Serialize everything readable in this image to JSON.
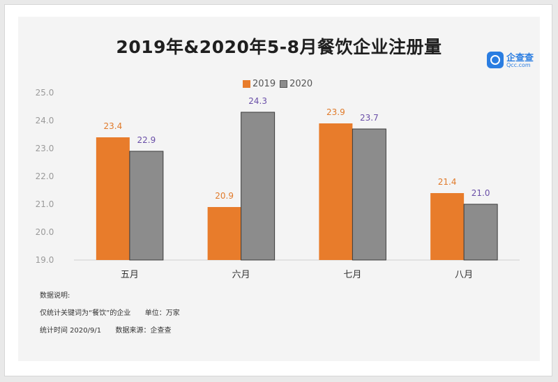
{
  "logo": {
    "name": "企查查",
    "sub": "Qcc.com",
    "color": "#2a7de1"
  },
  "notes": {
    "heading": "数据说明:",
    "scope": "仅统计关键词为“餐饮”的企业",
    "unit": "单位：万家",
    "stat_time": "统计时间 2020/9/1",
    "source": "数据来源：企查查"
  },
  "chart_data": {
    "type": "bar",
    "title": "2019年&2020年5-8月餐饮企业注册量",
    "categories": [
      "五月",
      "六月",
      "七月",
      "八月"
    ],
    "series": [
      {
        "name": "2019",
        "values": [
          23.4,
          20.9,
          23.9,
          21.4
        ],
        "color": "#e87c2b",
        "label_color": "#e07a2a"
      },
      {
        "name": "2020",
        "values": [
          22.9,
          24.3,
          23.7,
          21.0
        ],
        "color": "#8c8c8c",
        "label_color": "#6a4fa8"
      }
    ],
    "ylim": [
      19.0,
      25.0
    ],
    "yticks": [
      "19.0",
      "20.0",
      "21.0",
      "22.0",
      "23.0",
      "24.0",
      "25.0"
    ],
    "legend_position": "top-center",
    "grid": false
  }
}
